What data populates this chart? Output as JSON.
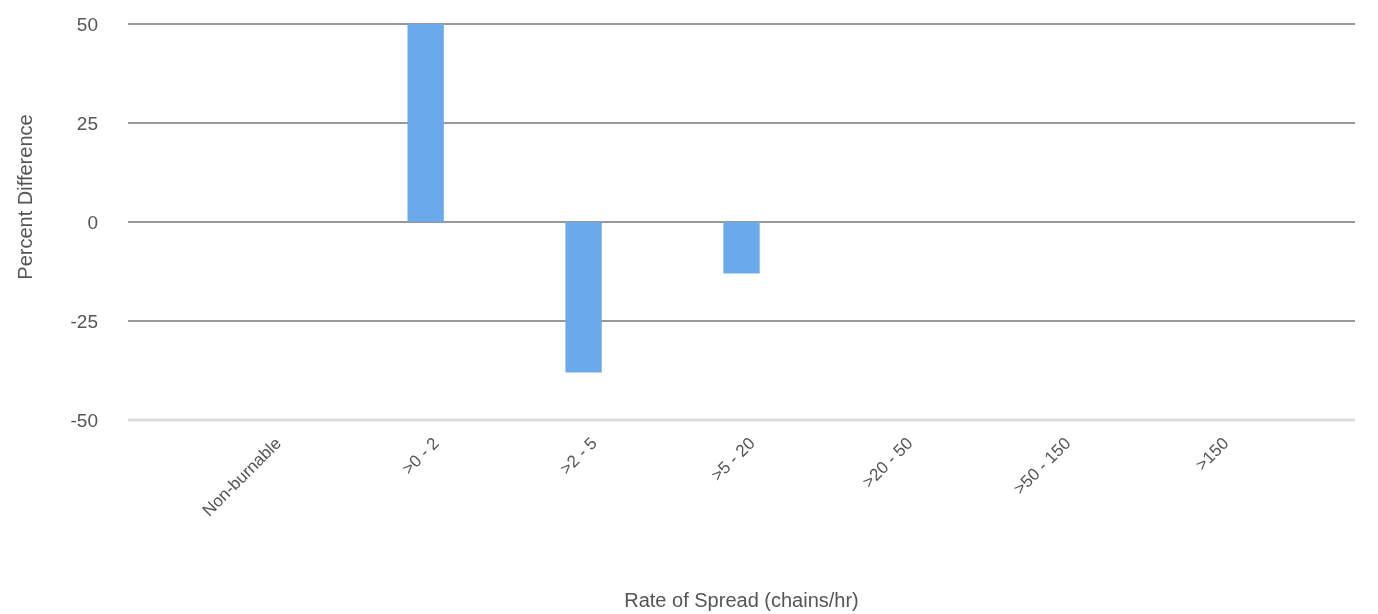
{
  "chart_data": {
    "type": "bar",
    "xlabel": "Rate of Spread (chains/hr)",
    "ylabel": "Percent Difference",
    "categories": [
      "Non-burnable",
      ">0 - 2",
      ">2 - 5",
      ">5 - 20",
      ">20 - 50",
      ">50 - 150",
      ">150"
    ],
    "values": [
      null,
      50,
      -38,
      -13,
      null,
      null,
      null
    ],
    "color": "#6aaaea",
    "ylim": [
      -50,
      50
    ],
    "yticks": [
      -50,
      -25,
      0,
      25,
      50
    ],
    "grid": "y"
  }
}
